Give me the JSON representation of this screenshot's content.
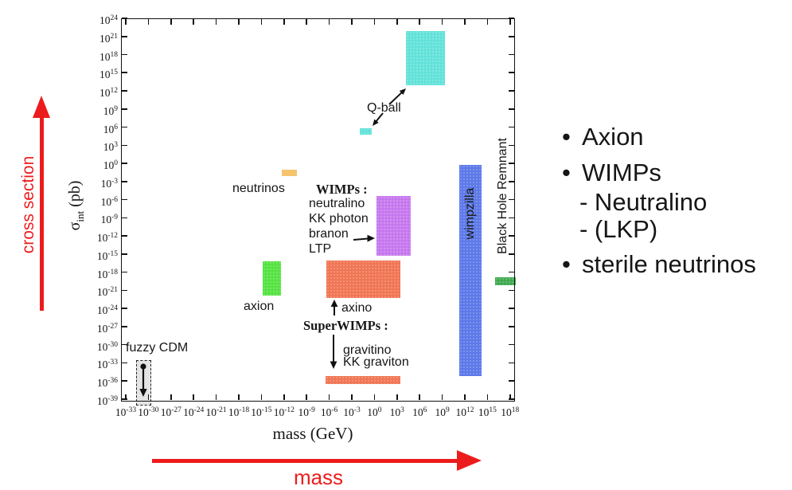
{
  "chart_data": {
    "type": "scatter",
    "title": "",
    "description": "Dark matter candidates: interaction cross section vs mass, log-log plane with rectangular candidate regions",
    "xlabel": "mass (GeV)",
    "ylabel": "sigma_int (pb)",
    "x_axis": {
      "scale": "log10",
      "range_exp": [
        -34,
        18.6
      ],
      "tick_exponents": [
        -33,
        -30,
        -27,
        -24,
        -21,
        -18,
        -15,
        -12,
        -9,
        -6,
        -3,
        0,
        3,
        6,
        9,
        12,
        15,
        18
      ]
    },
    "y_axis": {
      "scale": "log10",
      "range_exp": [
        -39.5,
        24
      ],
      "tick_exponents": [
        24,
        21,
        18,
        15,
        12,
        9,
        6,
        3,
        0,
        -3,
        -6,
        -9,
        -12,
        -15,
        -18,
        -21,
        -24,
        -27,
        -30,
        -33,
        -36,
        -39
      ]
    },
    "regions": [
      {
        "name": "fuzzy CDM",
        "color": "#e4e4e4",
        "mass_exp_range": [
          -31.5,
          -29.5
        ],
        "sigma_exp_range": [
          -39,
          -32.5
        ],
        "note": "dashed box, downward arrow = upper limit"
      },
      {
        "name": "axion",
        "color": "#55e342",
        "mass_exp_range": [
          -15,
          -12.5
        ],
        "sigma_exp_range": [
          -22,
          -16
        ]
      },
      {
        "name": "neutrinos",
        "color": "#f5c46d",
        "mass_exp_range": [
          -12,
          -10.5
        ],
        "sigma_exp_range": [
          -2.5,
          -1.3
        ]
      },
      {
        "name": "WIMPs (neutralino, KK photon, branon, LTP)",
        "color": "#c678ee",
        "mass_exp_range": [
          0.5,
          5
        ],
        "sigma_exp_range": [
          -15,
          -5.5
        ]
      },
      {
        "name": "axino (SuperWIMP)",
        "color": "#f07655",
        "mass_exp_range": [
          -6.5,
          3.5
        ],
        "sigma_exp_range": [
          -22,
          -16
        ]
      },
      {
        "name": "gravitino, KK graviton (SuperWIMPs)",
        "color": "#f07655",
        "mass_exp_range": [
          -6.5,
          3.5
        ],
        "sigma_exp_range": [
          -36.5,
          -35
        ]
      },
      {
        "name": "Q-ball (small)",
        "color": "#63e2d9",
        "mass_exp_range": [
          -2,
          -0.5
        ],
        "sigma_exp_range": [
          4.8,
          5.9
        ]
      },
      {
        "name": "Q-ball (large)",
        "color": "#63e2d9",
        "mass_exp_range": [
          4,
          9.5
        ],
        "sigma_exp_range": [
          13,
          22
        ]
      },
      {
        "name": "wimpzilla",
        "color": "#5d79e8",
        "mass_exp_range": [
          11.5,
          14.5
        ],
        "sigma_exp_range": [
          -35,
          0
        ]
      },
      {
        "name": "Black Hole Remnant",
        "color": "#43aa52",
        "mass_exp_range": [
          16,
          18.5
        ],
        "sigma_exp_range": [
          -20,
          -18.7
        ]
      }
    ]
  },
  "axis_labels": {
    "base": "10",
    "y_symbol": "σ",
    "y_sub": "int",
    "y_unit": " (pb)",
    "x": "mass (GeV)"
  },
  "plot_labels": {
    "neutrinos": "neutrinos",
    "axion": "axion",
    "qball": "Q-ball",
    "fuzzy_cdm": "fuzzy CDM",
    "wimpzilla": "wimpzilla",
    "black_hole_remnant": "Black Hole Remnant",
    "wimps_title": "WIMPs :",
    "wimps_members": [
      "neutralino",
      "KK photon",
      "branon",
      "LTP"
    ],
    "superwimps_title": "SuperWIMPs :",
    "axino": "axino",
    "superwimps_members": [
      "gravitino",
      "KK graviton"
    ]
  },
  "red_annotations": {
    "color": "#ed1c1c",
    "cross_section": "cross section",
    "mass": "mass"
  },
  "candidates_list": {
    "bullet": "•",
    "items": [
      {
        "label": "Axion",
        "level": 0
      },
      {
        "label": "WIMPs",
        "level": 0
      },
      {
        "label": "- Neutralino",
        "level": 1
      },
      {
        "label": "- (LKP)",
        "level": 1
      },
      {
        "label": "sterile neutrinos",
        "level": 0
      }
    ]
  }
}
